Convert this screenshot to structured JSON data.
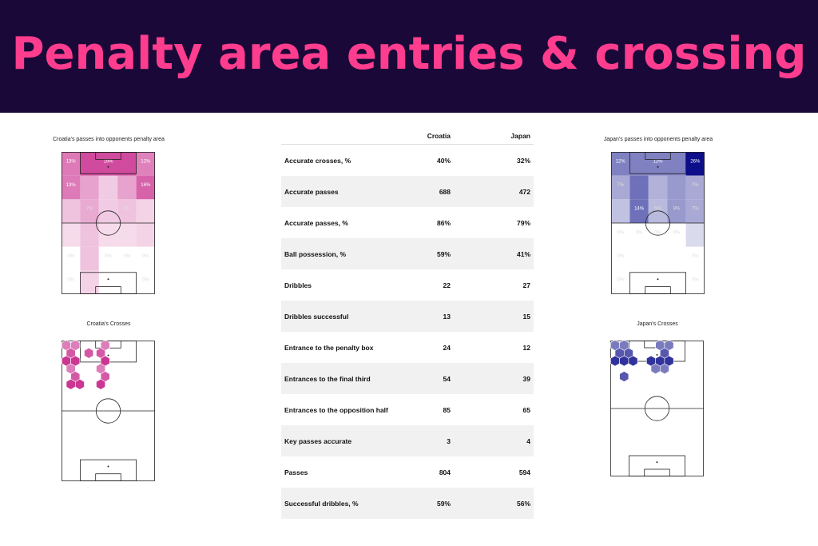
{
  "title": "Penalty area entries & crossing",
  "panels": {
    "croatia_heat_title": "Croatia's passes into opponents penalty area",
    "japan_heat_title": "Japan's passes into opponents penalty area",
    "croatia_cross_title": "Croatia's Crosses",
    "japan_cross_title": "Japan's Crosses"
  },
  "colors": {
    "croatia": "#c2127f",
    "japan": "#0d0f8a",
    "banner_bg": "#1a0838",
    "banner_text": "#ff3d8e"
  },
  "chart_data": [
    {
      "type": "heatmap",
      "title": "Croatia's passes into opponents penalty area",
      "cells": [
        {
          "col": 0,
          "row": 0,
          "value": 13,
          "label": "13%"
        },
        {
          "col": 1,
          "row": 0,
          "value": 19,
          "label": "19%"
        },
        {
          "col": 4,
          "row": 0,
          "value": 12,
          "label": "12%"
        },
        {
          "col": 0,
          "row": 1,
          "value": 13,
          "label": "13%"
        },
        {
          "col": 1,
          "row": 1,
          "value": 8,
          "label": ""
        },
        {
          "col": 2,
          "row": 1,
          "value": 3,
          "label": ""
        },
        {
          "col": 3,
          "row": 1,
          "value": 8,
          "label": ""
        },
        {
          "col": 4,
          "row": 1,
          "value": 16,
          "label": "16%"
        },
        {
          "col": 0,
          "row": 2,
          "value": 4,
          "label": ""
        },
        {
          "col": 1,
          "row": 2,
          "value": 7,
          "label": "7%"
        },
        {
          "col": 2,
          "row": 2,
          "value": 3,
          "label": ""
        },
        {
          "col": 3,
          "row": 2,
          "value": 4,
          "label": "4%"
        },
        {
          "col": 4,
          "row": 2,
          "value": 2,
          "label": ""
        },
        {
          "col": 0,
          "row": 3,
          "value": 1,
          "label": ""
        },
        {
          "col": 1,
          "row": 3,
          "value": 4,
          "label": ""
        },
        {
          "col": 2,
          "row": 3,
          "value": 1,
          "label": ""
        },
        {
          "col": 3,
          "row": 3,
          "value": 1,
          "label": ""
        },
        {
          "col": 4,
          "row": 3,
          "value": 2,
          "label": ""
        },
        {
          "col": 0,
          "row": 4,
          "value": 0,
          "label": "0%"
        },
        {
          "col": 1,
          "row": 4,
          "value": 4,
          "label": ""
        },
        {
          "col": 2,
          "row": 4,
          "value": 0,
          "label": "0%"
        },
        {
          "col": 3,
          "row": 4,
          "value": 0,
          "label": "0%"
        },
        {
          "col": 4,
          "row": 4,
          "value": 0,
          "label": "0%"
        },
        {
          "col": 0,
          "row": 5,
          "value": 0,
          "label": "0%"
        },
        {
          "col": 1,
          "row": 5,
          "value": 2,
          "label": ""
        },
        {
          "col": 4,
          "row": 5,
          "value": 0,
          "label": "0%"
        }
      ]
    },
    {
      "type": "table",
      "columns": [
        "",
        "Croatia",
        "Japan"
      ],
      "rows": [
        {
          "label": "Accurate crosses, %",
          "croatia": "40%",
          "japan": "32%"
        },
        {
          "label": "Accurate passes",
          "croatia": "688",
          "japan": "472"
        },
        {
          "label": "Accurate passes, %",
          "croatia": "86%",
          "japan": "79%"
        },
        {
          "label": "Ball possession, %",
          "croatia": "59%",
          "japan": "41%"
        },
        {
          "label": "Dribbles",
          "croatia": "22",
          "japan": "27"
        },
        {
          "label": "Dribbles successful",
          "croatia": "13",
          "japan": "15"
        },
        {
          "label": "Entrance to the penalty box",
          "croatia": "24",
          "japan": "12"
        },
        {
          "label": "Entrances to the final third",
          "croatia": "54",
          "japan": "39"
        },
        {
          "label": "Entrances to the opposition half",
          "croatia": "85",
          "japan": "65"
        },
        {
          "label": "Key passes accurate",
          "croatia": "3",
          "japan": "4"
        },
        {
          "label": "Passes",
          "croatia": "804",
          "japan": "594"
        },
        {
          "label": "Successful dribbles, %",
          "croatia": "59%",
          "japan": "56%"
        }
      ]
    },
    {
      "type": "heatmap",
      "title": "Japan's passes into opponents penalty area",
      "cells": [
        {
          "col": 0,
          "row": 0,
          "value": 12,
          "label": "12%"
        },
        {
          "col": 1,
          "row": 0,
          "value": 12,
          "label": "12%"
        },
        {
          "col": 4,
          "row": 0,
          "value": 26,
          "label": "26%"
        },
        {
          "col": 0,
          "row": 1,
          "value": 7,
          "label": "7%"
        },
        {
          "col": 1,
          "row": 1,
          "value": 14,
          "label": ""
        },
        {
          "col": 2,
          "row": 1,
          "value": 6,
          "label": ""
        },
        {
          "col": 3,
          "row": 1,
          "value": 9,
          "label": ""
        },
        {
          "col": 4,
          "row": 1,
          "value": 7,
          "label": "7%"
        },
        {
          "col": 0,
          "row": 2,
          "value": 4,
          "label": ""
        },
        {
          "col": 1,
          "row": 2,
          "value": 14,
          "label": "14%"
        },
        {
          "col": 2,
          "row": 2,
          "value": 5,
          "label": "5%"
        },
        {
          "col": 3,
          "row": 2,
          "value": 9,
          "label": "9%"
        },
        {
          "col": 4,
          "row": 2,
          "value": 7,
          "label": "7%"
        },
        {
          "col": 0,
          "row": 3,
          "value": 0,
          "label": "0%"
        },
        {
          "col": 1,
          "row": 3,
          "value": 0,
          "label": "0%"
        },
        {
          "col": 2,
          "row": 3,
          "value": 0,
          "label": "0%"
        },
        {
          "col": 3,
          "row": 3,
          "value": 0,
          "label": "0%"
        },
        {
          "col": 4,
          "row": 3,
          "value": 1,
          "label": ""
        },
        {
          "col": 0,
          "row": 4,
          "value": 0,
          "label": "0%"
        },
        {
          "col": 4,
          "row": 4,
          "value": 0,
          "label": "0%"
        },
        {
          "col": 0,
          "row": 5,
          "value": 0,
          "label": "0%"
        },
        {
          "col": 4,
          "row": 5,
          "value": 0,
          "label": "0%"
        }
      ]
    },
    {
      "type": "scatter",
      "title": "Croatia's Crosses",
      "hexes": [
        [
          0,
          0
        ],
        [
          1,
          0
        ],
        [
          3,
          0
        ],
        [
          0,
          1
        ],
        [
          2,
          1
        ],
        [
          3,
          1
        ],
        [
          0,
          2
        ],
        [
          1,
          2
        ],
        [
          3,
          2
        ],
        [
          0,
          3
        ],
        [
          3,
          3
        ],
        [
          1,
          4
        ],
        [
          3,
          4
        ],
        [
          0,
          5
        ],
        [
          1,
          5
        ],
        [
          3,
          5
        ]
      ]
    },
    {
      "type": "scatter",
      "title": "Japan's Crosses",
      "hexes": [
        [
          0,
          0
        ],
        [
          1,
          0
        ],
        [
          5,
          0
        ],
        [
          6,
          0
        ],
        [
          0,
          1
        ],
        [
          1,
          1
        ],
        [
          5,
          1
        ],
        [
          0,
          2
        ],
        [
          1,
          2
        ],
        [
          2,
          2
        ],
        [
          4,
          2
        ],
        [
          5,
          2
        ],
        [
          6,
          2
        ],
        [
          4,
          3
        ],
        [
          5,
          3
        ],
        [
          1,
          4
        ]
      ]
    }
  ]
}
